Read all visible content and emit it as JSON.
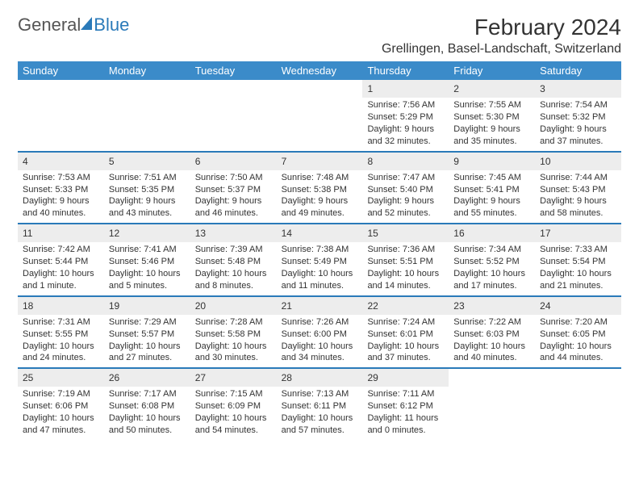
{
  "brand": {
    "word1": "General",
    "word2": "Blue"
  },
  "title": "February 2024",
  "location": "Grellingen, Basel-Landschaft, Switzerland",
  "colors": {
    "header_bg": "#3b8bc9",
    "accent_blue": "#2a7ab9",
    "daynum_bg": "#ededed",
    "text": "#333333",
    "bg": "#ffffff"
  },
  "day_names": [
    "Sunday",
    "Monday",
    "Tuesday",
    "Wednesday",
    "Thursday",
    "Friday",
    "Saturday"
  ],
  "weeks": [
    [
      null,
      null,
      null,
      null,
      {
        "n": "1",
        "sunrise": "Sunrise: 7:56 AM",
        "sunset": "Sunset: 5:29 PM",
        "daylight1": "Daylight: 9 hours",
        "daylight2": "and 32 minutes."
      },
      {
        "n": "2",
        "sunrise": "Sunrise: 7:55 AM",
        "sunset": "Sunset: 5:30 PM",
        "daylight1": "Daylight: 9 hours",
        "daylight2": "and 35 minutes."
      },
      {
        "n": "3",
        "sunrise": "Sunrise: 7:54 AM",
        "sunset": "Sunset: 5:32 PM",
        "daylight1": "Daylight: 9 hours",
        "daylight2": "and 37 minutes."
      }
    ],
    [
      {
        "n": "4",
        "sunrise": "Sunrise: 7:53 AM",
        "sunset": "Sunset: 5:33 PM",
        "daylight1": "Daylight: 9 hours",
        "daylight2": "and 40 minutes."
      },
      {
        "n": "5",
        "sunrise": "Sunrise: 7:51 AM",
        "sunset": "Sunset: 5:35 PM",
        "daylight1": "Daylight: 9 hours",
        "daylight2": "and 43 minutes."
      },
      {
        "n": "6",
        "sunrise": "Sunrise: 7:50 AM",
        "sunset": "Sunset: 5:37 PM",
        "daylight1": "Daylight: 9 hours",
        "daylight2": "and 46 minutes."
      },
      {
        "n": "7",
        "sunrise": "Sunrise: 7:48 AM",
        "sunset": "Sunset: 5:38 PM",
        "daylight1": "Daylight: 9 hours",
        "daylight2": "and 49 minutes."
      },
      {
        "n": "8",
        "sunrise": "Sunrise: 7:47 AM",
        "sunset": "Sunset: 5:40 PM",
        "daylight1": "Daylight: 9 hours",
        "daylight2": "and 52 minutes."
      },
      {
        "n": "9",
        "sunrise": "Sunrise: 7:45 AM",
        "sunset": "Sunset: 5:41 PM",
        "daylight1": "Daylight: 9 hours",
        "daylight2": "and 55 minutes."
      },
      {
        "n": "10",
        "sunrise": "Sunrise: 7:44 AM",
        "sunset": "Sunset: 5:43 PM",
        "daylight1": "Daylight: 9 hours",
        "daylight2": "and 58 minutes."
      }
    ],
    [
      {
        "n": "11",
        "sunrise": "Sunrise: 7:42 AM",
        "sunset": "Sunset: 5:44 PM",
        "daylight1": "Daylight: 10 hours",
        "daylight2": "and 1 minute."
      },
      {
        "n": "12",
        "sunrise": "Sunrise: 7:41 AM",
        "sunset": "Sunset: 5:46 PM",
        "daylight1": "Daylight: 10 hours",
        "daylight2": "and 5 minutes."
      },
      {
        "n": "13",
        "sunrise": "Sunrise: 7:39 AM",
        "sunset": "Sunset: 5:48 PM",
        "daylight1": "Daylight: 10 hours",
        "daylight2": "and 8 minutes."
      },
      {
        "n": "14",
        "sunrise": "Sunrise: 7:38 AM",
        "sunset": "Sunset: 5:49 PM",
        "daylight1": "Daylight: 10 hours",
        "daylight2": "and 11 minutes."
      },
      {
        "n": "15",
        "sunrise": "Sunrise: 7:36 AM",
        "sunset": "Sunset: 5:51 PM",
        "daylight1": "Daylight: 10 hours",
        "daylight2": "and 14 minutes."
      },
      {
        "n": "16",
        "sunrise": "Sunrise: 7:34 AM",
        "sunset": "Sunset: 5:52 PM",
        "daylight1": "Daylight: 10 hours",
        "daylight2": "and 17 minutes."
      },
      {
        "n": "17",
        "sunrise": "Sunrise: 7:33 AM",
        "sunset": "Sunset: 5:54 PM",
        "daylight1": "Daylight: 10 hours",
        "daylight2": "and 21 minutes."
      }
    ],
    [
      {
        "n": "18",
        "sunrise": "Sunrise: 7:31 AM",
        "sunset": "Sunset: 5:55 PM",
        "daylight1": "Daylight: 10 hours",
        "daylight2": "and 24 minutes."
      },
      {
        "n": "19",
        "sunrise": "Sunrise: 7:29 AM",
        "sunset": "Sunset: 5:57 PM",
        "daylight1": "Daylight: 10 hours",
        "daylight2": "and 27 minutes."
      },
      {
        "n": "20",
        "sunrise": "Sunrise: 7:28 AM",
        "sunset": "Sunset: 5:58 PM",
        "daylight1": "Daylight: 10 hours",
        "daylight2": "and 30 minutes."
      },
      {
        "n": "21",
        "sunrise": "Sunrise: 7:26 AM",
        "sunset": "Sunset: 6:00 PM",
        "daylight1": "Daylight: 10 hours",
        "daylight2": "and 34 minutes."
      },
      {
        "n": "22",
        "sunrise": "Sunrise: 7:24 AM",
        "sunset": "Sunset: 6:01 PM",
        "daylight1": "Daylight: 10 hours",
        "daylight2": "and 37 minutes."
      },
      {
        "n": "23",
        "sunrise": "Sunrise: 7:22 AM",
        "sunset": "Sunset: 6:03 PM",
        "daylight1": "Daylight: 10 hours",
        "daylight2": "and 40 minutes."
      },
      {
        "n": "24",
        "sunrise": "Sunrise: 7:20 AM",
        "sunset": "Sunset: 6:05 PM",
        "daylight1": "Daylight: 10 hours",
        "daylight2": "and 44 minutes."
      }
    ],
    [
      {
        "n": "25",
        "sunrise": "Sunrise: 7:19 AM",
        "sunset": "Sunset: 6:06 PM",
        "daylight1": "Daylight: 10 hours",
        "daylight2": "and 47 minutes."
      },
      {
        "n": "26",
        "sunrise": "Sunrise: 7:17 AM",
        "sunset": "Sunset: 6:08 PM",
        "daylight1": "Daylight: 10 hours",
        "daylight2": "and 50 minutes."
      },
      {
        "n": "27",
        "sunrise": "Sunrise: 7:15 AM",
        "sunset": "Sunset: 6:09 PM",
        "daylight1": "Daylight: 10 hours",
        "daylight2": "and 54 minutes."
      },
      {
        "n": "28",
        "sunrise": "Sunrise: 7:13 AM",
        "sunset": "Sunset: 6:11 PM",
        "daylight1": "Daylight: 10 hours",
        "daylight2": "and 57 minutes."
      },
      {
        "n": "29",
        "sunrise": "Sunrise: 7:11 AM",
        "sunset": "Sunset: 6:12 PM",
        "daylight1": "Daylight: 11 hours",
        "daylight2": "and 0 minutes."
      },
      null,
      null
    ]
  ]
}
